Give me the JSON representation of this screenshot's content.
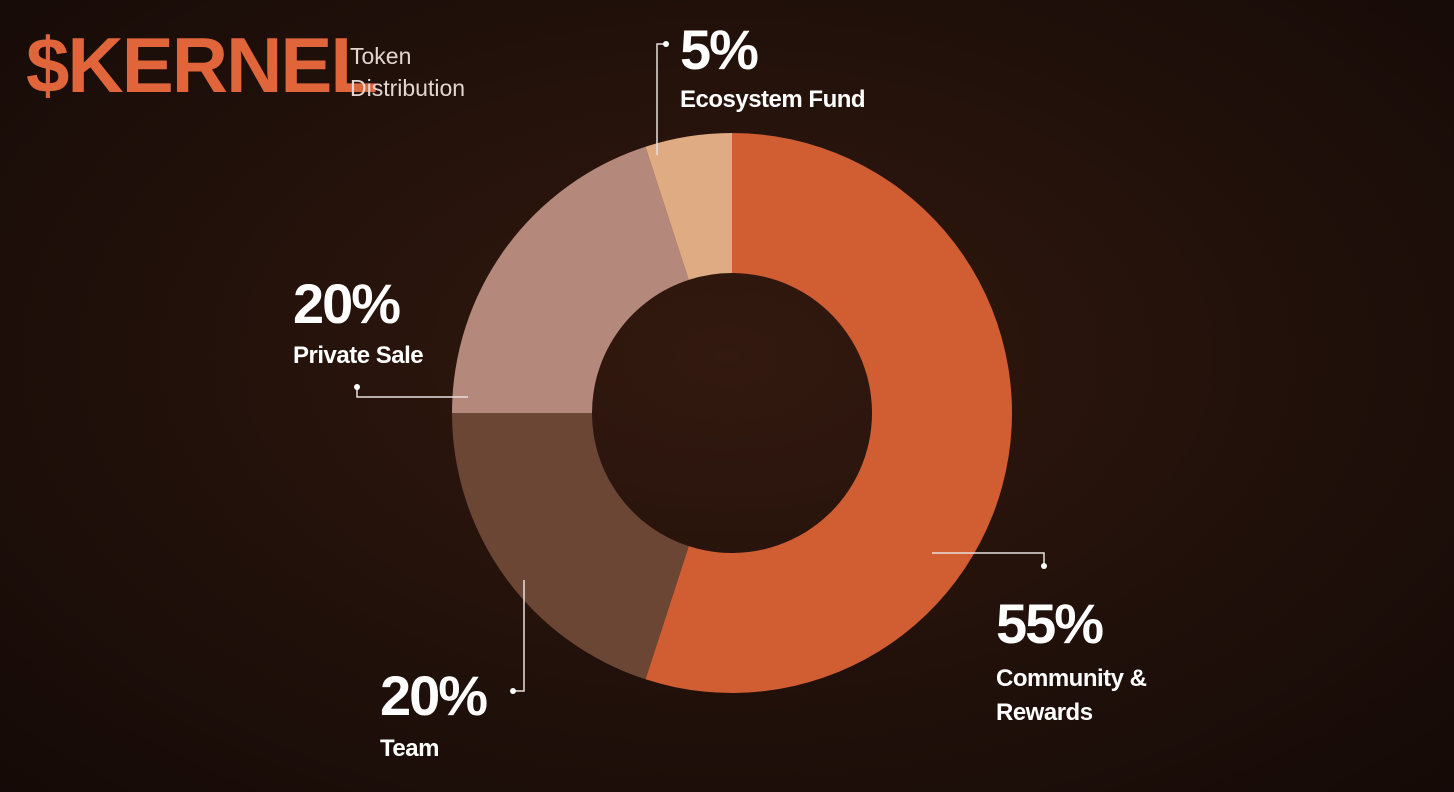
{
  "chart_data": {
    "type": "pie",
    "title": "$KERNEL",
    "subtitle": "Token Distribution",
    "categories": [
      "Community & Rewards",
      "Team",
      "Private Sale",
      "Ecosystem Fund"
    ],
    "values": [
      55,
      20,
      20,
      5
    ],
    "value_labels": [
      "55%",
      "20%",
      "20%",
      "5%"
    ],
    "colors": [
      "#d15d33",
      "#6c4635",
      "#b4887a",
      "#dfab83"
    ]
  }
}
